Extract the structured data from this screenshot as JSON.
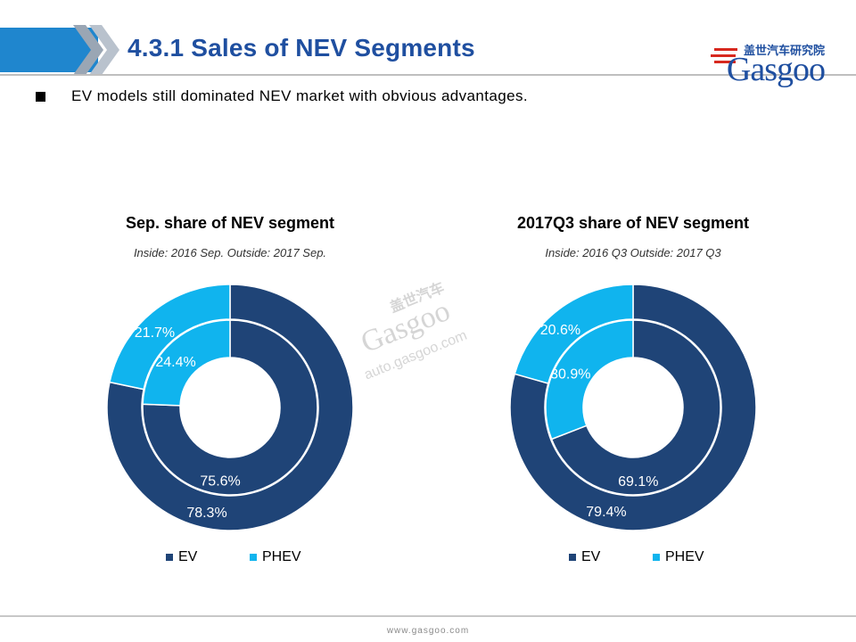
{
  "header": {
    "title": "4.3.1 Sales of NEV Segments",
    "logo_cn": "盖世汽车研究院",
    "logo_text": "Gasgoo"
  },
  "bullet": {
    "text": "EV models still dominated NEV market with obvious advantages."
  },
  "colors": {
    "ev": "#1f4477",
    "phev": "#10b4ee",
    "accent": "#1f86ce",
    "title": "#1f4fa0"
  },
  "watermark": {
    "cn": "盖世汽车",
    "brand": "Gasgoo",
    "url": "auto.gasgoo.com"
  },
  "footer": {
    "url": "www.gasgoo.com"
  },
  "chart_data": [
    {
      "type": "donut",
      "title": "Sep. share of NEV segment",
      "subtitle": "Inside: 2016 Sep.  Outside: 2017 Sep.",
      "categories": [
        "EV",
        "PHEV"
      ],
      "series": [
        {
          "ring": "inner",
          "values": [
            75.6,
            24.4
          ],
          "labels": [
            "75.6%",
            "24.4%"
          ]
        },
        {
          "ring": "outer",
          "values": [
            78.3,
            21.7
          ],
          "labels": [
            "78.3%",
            "21.7%"
          ]
        }
      ],
      "legend": [
        "EV",
        "PHEV"
      ],
      "legend_position": "bottom"
    },
    {
      "type": "donut",
      "title": "2017Q3 share of NEV segment",
      "subtitle": "Inside: 2016 Q3  Outside: 2017 Q3",
      "categories": [
        "EV",
        "PHEV"
      ],
      "series": [
        {
          "ring": "inner",
          "values": [
            69.1,
            30.9
          ],
          "labels": [
            "69.1%",
            "30.9%"
          ]
        },
        {
          "ring": "outer",
          "values": [
            79.4,
            20.6
          ],
          "labels": [
            "79.4%",
            "20.6%"
          ]
        }
      ],
      "legend": [
        "EV",
        "PHEV"
      ],
      "legend_position": "bottom"
    }
  ]
}
